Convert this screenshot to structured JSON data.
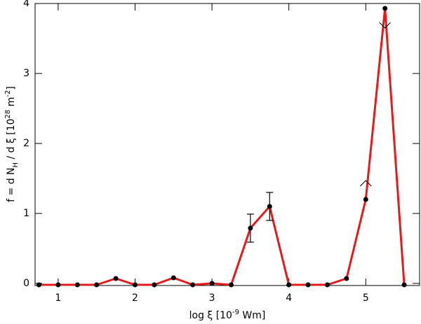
{
  "chart_data": {
    "type": "line",
    "xlabel": [
      "log ξ [10",
      "-9",
      " Wm]"
    ],
    "ylabel": [
      "f = d N",
      "H",
      " / d ξ [10",
      "28",
      " m",
      "-2",
      "]"
    ],
    "x": [
      0.75,
      1.0,
      1.25,
      1.5,
      1.75,
      2.0,
      2.25,
      2.5,
      2.75,
      3.0,
      3.25,
      3.5,
      3.75,
      4.0,
      4.25,
      4.5,
      4.75,
      5.0,
      5.25,
      5.5
    ],
    "series": [
      {
        "color": "#e41a1c",
        "values": [
          -0.02,
          -0.02,
          -0.02,
          -0.02,
          0.07,
          -0.02,
          -0.02,
          0.08,
          -0.02,
          0.0,
          -0.02,
          0.79,
          1.1,
          -0.02,
          -0.02,
          -0.02,
          0.07,
          1.2,
          3.93,
          -0.02
        ],
        "errors": [
          null,
          null,
          null,
          null,
          null,
          null,
          null,
          null,
          null,
          null,
          null,
          0.2,
          0.2,
          null,
          null,
          null,
          null,
          null,
          null,
          null
        ]
      }
    ],
    "lower_limit_arrows": [
      {
        "x": 5.0,
        "y": 1.47
      }
    ],
    "upper_limit_arrows": [
      {
        "x": 5.25,
        "y": 3.65
      }
    ],
    "xlim": [
      0.7,
      5.7
    ],
    "xticks": [
      1,
      2,
      3,
      4,
      5
    ],
    "ylim": [
      -0.03,
      4.0
    ],
    "yticks": [
      0,
      1,
      2,
      3,
      4
    ]
  }
}
